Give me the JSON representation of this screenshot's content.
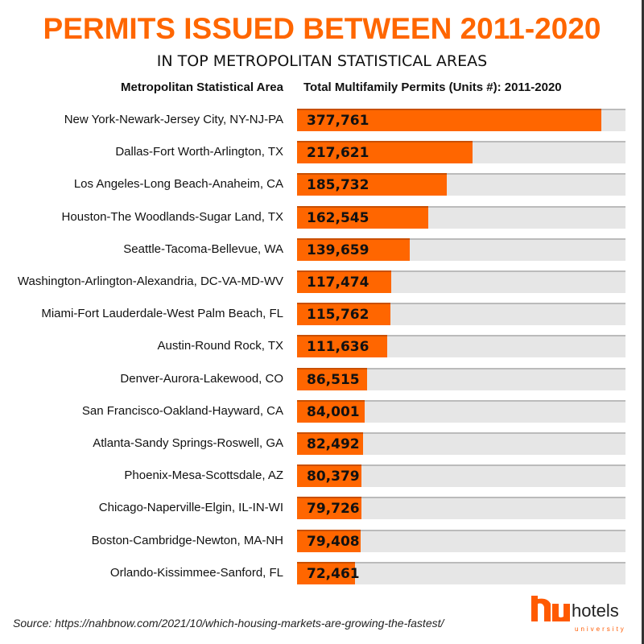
{
  "chart_data": {
    "type": "bar",
    "orientation": "horizontal",
    "title": "PERMITS ISSUED BETWEEN 2011-2020",
    "subtitle": "IN TOP METROPOLITAN STATISTICAL AREAS",
    "xlabel": "Total Multifamily Permits (Units #): 2011-2020",
    "ylabel": "Metropolitan Statistical Area",
    "xlim": [
      0,
      408000
    ],
    "categories": [
      "New York-Newark-Jersey City, NY-NJ-PA",
      "Dallas-Fort Worth-Arlington, TX",
      "Los Angeles-Long Beach-Anaheim, CA",
      "Houston-The Woodlands-Sugar Land, TX",
      "Seattle-Tacoma-Bellevue, WA",
      "Washington-Arlington-Alexandria, DC-VA-MD-WV",
      "Miami-Fort Lauderdale-West Palm Beach, FL",
      "Austin-Round Rock, TX",
      "Denver-Aurora-Lakewood, CO",
      "San Francisco-Oakland-Hayward, CA",
      "Atlanta-Sandy Springs-Roswell, GA",
      "Phoenix-Mesa-Scottsdale, AZ",
      "Chicago-Naperville-Elgin, IL-IN-WI",
      "Boston-Cambridge-Newton, MA-NH",
      "Orlando-Kissimmee-Sanford, FL"
    ],
    "values": [
      377761,
      217621,
      185732,
      162545,
      139659,
      117474,
      115762,
      111636,
      86515,
      84001,
      82492,
      80379,
      79726,
      79408,
      72461
    ],
    "labels": [
      "377,761",
      "217,621",
      "185,732",
      "162,545",
      "139,659",
      "117,474",
      "115,762",
      "111,636",
      "86,515",
      "84,001",
      "82,492",
      "80,379",
      "79,726",
      "79,408",
      "72,461"
    ],
    "colors": {
      "bar": "#ff6600",
      "track": "#e6e6e6"
    }
  },
  "source": "Source: https://nahbnow.com/2021/10/which-housing-markets-are-growing-the-fastest/",
  "logo": {
    "name": "hotels",
    "tagline": "university"
  }
}
